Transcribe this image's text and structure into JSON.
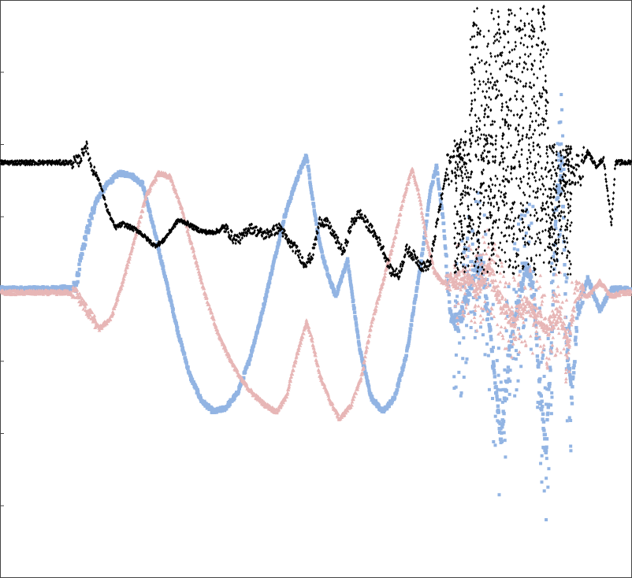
{
  "chart_data": {
    "type": "scatter",
    "title": "",
    "xlabel": "",
    "ylabel": "",
    "xlim": [
      0,
      800
    ],
    "ylim": [
      -4,
      4
    ],
    "grid": false,
    "legend": "none",
    "series": [
      {
        "color": "#92b4e3",
        "marker": "square",
        "points": [
          [
            0,
            0
          ],
          [
            60,
            0
          ],
          [
            95,
            0.02
          ],
          [
            105,
            0.6
          ],
          [
            120,
            1.2
          ],
          [
            135,
            1.45
          ],
          [
            150,
            1.6
          ],
          [
            165,
            1.58
          ],
          [
            180,
            1.45
          ],
          [
            195,
            0.8
          ],
          [
            210,
            0.1
          ],
          [
            225,
            -0.6
          ],
          [
            240,
            -1.2
          ],
          [
            255,
            -1.55
          ],
          [
            270,
            -1.7
          ],
          [
            285,
            -1.65
          ],
          [
            300,
            -1.45
          ],
          [
            315,
            -1.0
          ],
          [
            330,
            -0.4
          ],
          [
            345,
            0.3
          ],
          [
            360,
            1.0
          ],
          [
            375,
            1.5
          ],
          [
            388,
            1.85
          ],
          [
            395,
            1.3
          ],
          [
            405,
            0.6
          ],
          [
            415,
            0.2
          ],
          [
            425,
            -0.1
          ],
          [
            440,
            0.4
          ],
          [
            455,
            -0.8
          ],
          [
            470,
            -1.5
          ],
          [
            485,
            -1.7
          ],
          [
            500,
            -1.5
          ],
          [
            515,
            -0.9
          ],
          [
            525,
            -0.2
          ],
          [
            535,
            0.5
          ],
          [
            545,
            1.35
          ],
          [
            553,
            1.7
          ],
          [
            562,
            0.9
          ],
          [
            570,
            -0.3
          ],
          [
            580,
            -0.5
          ],
          [
            590,
            -0.2
          ],
          [
            600,
            0.2
          ],
          [
            610,
            0.4
          ],
          [
            620,
            -0.5
          ],
          [
            630,
            -1.6
          ],
          [
            635,
            -2.1
          ],
          [
            645,
            -0.9
          ],
          [
            655,
            -0.3
          ],
          [
            665,
            0.3
          ],
          [
            675,
            0.1
          ],
          [
            685,
            -1.5
          ],
          [
            692,
            -2.2
          ],
          [
            700,
            -0.5
          ],
          [
            705,
            1.2
          ],
          [
            712,
            1.8
          ],
          [
            718,
            -0.8
          ],
          [
            725,
            -1.5
          ],
          [
            732,
            -0.3
          ],
          [
            745,
            0.15
          ],
          [
            760,
            -0.3
          ],
          [
            775,
            0.0
          ],
          [
            790,
            0.0
          ],
          [
            800,
            0.0
          ]
        ]
      },
      {
        "color": "#e7b6b6",
        "marker": "triangle",
        "points": [
          [
            0,
            -0.05
          ],
          [
            60,
            -0.05
          ],
          [
            95,
            -0.05
          ],
          [
            110,
            -0.3
          ],
          [
            125,
            -0.55
          ],
          [
            140,
            -0.4
          ],
          [
            155,
            0.1
          ],
          [
            170,
            0.7
          ],
          [
            185,
            1.3
          ],
          [
            200,
            1.6
          ],
          [
            215,
            1.55
          ],
          [
            230,
            1.1
          ],
          [
            245,
            0.5
          ],
          [
            260,
            -0.1
          ],
          [
            275,
            -0.6
          ],
          [
            290,
            -0.95
          ],
          [
            305,
            -1.25
          ],
          [
            320,
            -1.45
          ],
          [
            335,
            -1.6
          ],
          [
            350,
            -1.7
          ],
          [
            362,
            -1.5
          ],
          [
            375,
            -0.95
          ],
          [
            388,
            -0.45
          ],
          [
            395,
            -0.7
          ],
          [
            405,
            -1.2
          ],
          [
            418,
            -1.55
          ],
          [
            430,
            -1.8
          ],
          [
            445,
            -1.6
          ],
          [
            458,
            -1.2
          ],
          [
            470,
            -0.5
          ],
          [
            485,
            0.1
          ],
          [
            500,
            0.7
          ],
          [
            512,
            1.3
          ],
          [
            522,
            1.65
          ],
          [
            530,
            1.35
          ],
          [
            540,
            0.7
          ],
          [
            550,
            0.25
          ],
          [
            560,
            0.1
          ],
          [
            575,
            0.1
          ],
          [
            590,
            0.15
          ],
          [
            605,
            0.0
          ],
          [
            620,
            0.3
          ],
          [
            635,
            -0.2
          ],
          [
            650,
            -0.45
          ],
          [
            665,
            -0.2
          ],
          [
            680,
            -0.35
          ],
          [
            695,
            -0.55
          ],
          [
            710,
            -0.3
          ],
          [
            720,
            -0.85
          ],
          [
            730,
            0.0
          ],
          [
            745,
            -0.1
          ],
          [
            760,
            0.1
          ],
          [
            775,
            -0.1
          ],
          [
            790,
            -0.05
          ],
          [
            800,
            -0.05
          ]
        ]
      },
      {
        "color": "#000000",
        "marker": "diamond",
        "points": [
          [
            0,
            1.75
          ],
          [
            60,
            1.75
          ],
          [
            90,
            1.75
          ],
          [
            100,
            1.78
          ],
          [
            108,
            2.0
          ],
          [
            115,
            1.7
          ],
          [
            125,
            1.5
          ],
          [
            135,
            1.1
          ],
          [
            145,
            0.85
          ],
          [
            155,
            0.9
          ],
          [
            165,
            0.85
          ],
          [
            175,
            0.8
          ],
          [
            185,
            0.7
          ],
          [
            195,
            0.6
          ],
          [
            205,
            0.65
          ],
          [
            215,
            0.8
          ],
          [
            225,
            0.95
          ],
          [
            235,
            0.92
          ],
          [
            245,
            0.85
          ],
          [
            255,
            0.8
          ],
          [
            265,
            0.78
          ],
          [
            275,
            0.8
          ],
          [
            285,
            0.85
          ],
          [
            295,
            0.7
          ],
          [
            305,
            0.7
          ],
          [
            315,
            0.85
          ],
          [
            325,
            0.8
          ],
          [
            335,
            0.75
          ],
          [
            345,
            0.8
          ],
          [
            355,
            0.85
          ],
          [
            365,
            0.65
          ],
          [
            375,
            0.55
          ],
          [
            385,
            0.35
          ],
          [
            395,
            0.45
          ],
          [
            405,
            0.95
          ],
          [
            415,
            0.9
          ],
          [
            425,
            0.7
          ],
          [
            435,
            0.5
          ],
          [
            445,
            0.9
          ],
          [
            455,
            1.05
          ],
          [
            465,
            0.9
          ],
          [
            475,
            0.75
          ],
          [
            485,
            0.55
          ],
          [
            495,
            0.25
          ],
          [
            505,
            0.2
          ],
          [
            515,
            0.55
          ],
          [
            525,
            0.45
          ],
          [
            535,
            0.3
          ],
          [
            545,
            0.35
          ],
          [
            555,
            1.0
          ],
          [
            565,
            1.6
          ],
          [
            575,
            1.8
          ],
          [
            585,
            1.85
          ],
          [
            590,
            2.0
          ],
          [
            595,
            0.8
          ],
          [
            600,
            3.9
          ],
          [
            605,
            0.5
          ],
          [
            615,
            2.3
          ],
          [
            625,
            0.4
          ],
          [
            632,
            3.8
          ],
          [
            640,
            1.0
          ],
          [
            645,
            3.9
          ],
          [
            650,
            0.3
          ],
          [
            655,
            2.8
          ],
          [
            660,
            1.2
          ],
          [
            665,
            3.6
          ],
          [
            670,
            0.5
          ],
          [
            675,
            3.9
          ],
          [
            680,
            0.8
          ],
          [
            685,
            3.2
          ],
          [
            690,
            3.9
          ],
          [
            695,
            0.7
          ],
          [
            700,
            1.2
          ],
          [
            705,
            0.5
          ],
          [
            710,
            1.2
          ],
          [
            720,
            1.75
          ],
          [
            735,
            1.65
          ],
          [
            745,
            1.9
          ],
          [
            755,
            1.7
          ],
          [
            765,
            1.8
          ],
          [
            775,
            0.9
          ],
          [
            780,
            1.75
          ],
          [
            790,
            1.75
          ],
          [
            800,
            1.75
          ]
        ]
      }
    ]
  }
}
